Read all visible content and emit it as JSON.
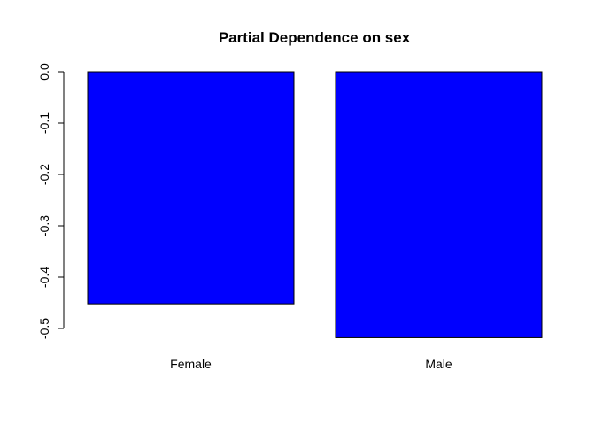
{
  "chart_data": {
    "type": "bar",
    "title": "Partial Dependence on sex",
    "xlabel": "",
    "ylabel": "",
    "categories": [
      "Female",
      "Male"
    ],
    "values": [
      -0.452,
      -0.518
    ],
    "ylim": [
      -0.5,
      0.0
    ],
    "yticks": [
      "0.0",
      "-0.1",
      "-0.2",
      "-0.3",
      "-0.4",
      "-0.5"
    ],
    "bar_color": "#0000ff",
    "grid": false,
    "legend": "none"
  }
}
